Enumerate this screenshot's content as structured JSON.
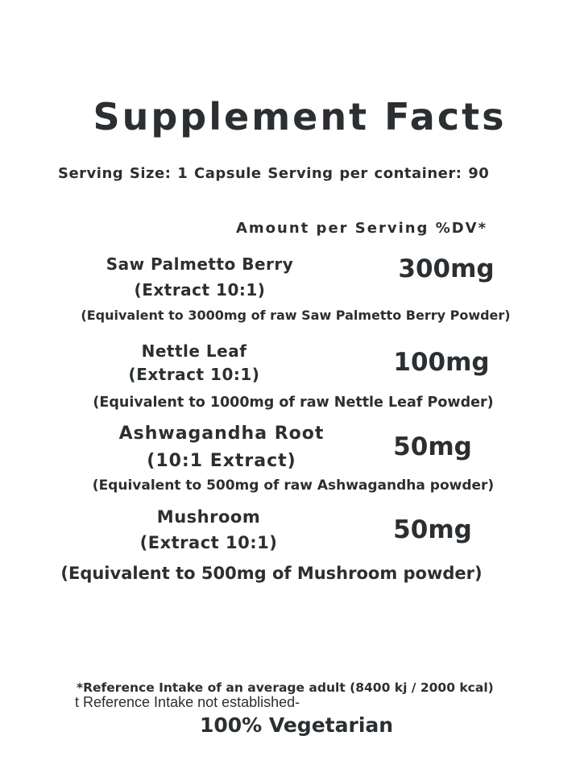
{
  "title": "Supplement Facts",
  "serving_line": "Serving Size: 1 Capsule  Serving per container: 90",
  "amount_header": "Amount per Serving %DV*",
  "ingredients": [
    {
      "name": "Saw Palmetto Berry",
      "form": "(Extract 10:1)",
      "amount": "300mg",
      "equivalent": "(Equivalent to 3000mg of raw Saw Palmetto Berry Powder)"
    },
    {
      "name": "Nettle Leaf",
      "form": "(Extract 10:1)",
      "amount": "100mg",
      "equivalent": "(Equivalent to 1000mg of raw Nettle Leaf Powder)"
    },
    {
      "name": "Ashwagandha Root",
      "form": "(10:1 Extract)",
      "amount": "50mg",
      "equivalent": "(Equivalent to 500mg of raw Ashwagandha powder)"
    },
    {
      "name": "Mushroom",
      "form": "(Extract 10:1)",
      "amount": "50mg",
      "equivalent": "(Equivalent to 500mg of Mushroom powder)"
    }
  ],
  "footnote_reference": "*Reference Intake of an average adult (8400 kj / 2000 kcal)",
  "footnote_not_established": "t Reference Intake not established-",
  "vegetarian": "100% Vegetarian",
  "text_color": "#2b2f31"
}
